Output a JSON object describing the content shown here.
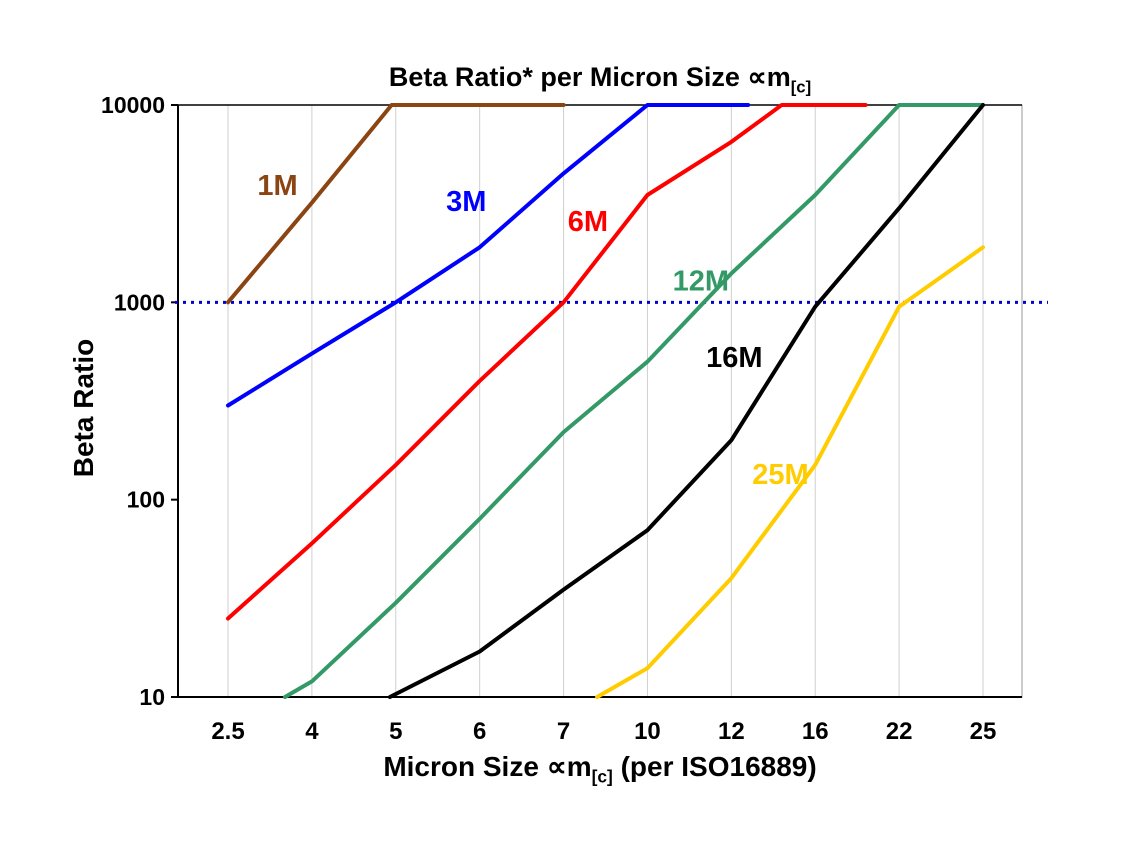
{
  "title": {
    "prefix": "Beta Ratio* per Micron Size ",
    "symbol": "∝m",
    "subscript": "[c]"
  },
  "y_axis": {
    "title": "Beta Ratio",
    "ticks": [
      {
        "label": "10000",
        "value": 10000
      },
      {
        "label": "1000",
        "value": 1000
      },
      {
        "label": "100",
        "value": 100
      },
      {
        "label": "10",
        "value": 10
      }
    ]
  },
  "x_axis": {
    "title_prefix": "Micron Size ",
    "symbol": "∝m",
    "subscript": "[c]",
    "title_suffix": " (per ISO16889)",
    "ticks": [
      "2.5",
      "4",
      "5",
      "6",
      "7",
      "10",
      "12",
      "16",
      "22",
      "25"
    ]
  },
  "chart_data": {
    "type": "line",
    "x_categories": [
      "2.5",
      "4",
      "5",
      "6",
      "7",
      "10",
      "12",
      "16",
      "22",
      "25"
    ],
    "y_scale": "log",
    "ylim": [
      10,
      10000
    ],
    "grid": "vertical-only",
    "legend_position": "inline-labels",
    "reference_line": {
      "value": 1000,
      "color": "#0000CC",
      "style": "dotted"
    },
    "series": [
      {
        "name": "1M",
        "color": "#8B4513",
        "points": [
          [
            0,
            1000
          ],
          [
            1,
            3200
          ],
          [
            1.95,
            10000
          ],
          [
            4.0,
            10000
          ]
        ]
      },
      {
        "name": "3M",
        "color": "#0000FF",
        "points": [
          [
            0,
            300
          ],
          [
            1,
            550
          ],
          [
            2,
            1000
          ],
          [
            3,
            1900
          ],
          [
            4,
            4500
          ],
          [
            5,
            10000
          ],
          [
            6.2,
            10000
          ]
        ]
      },
      {
        "name": "6M",
        "color": "#FF0000",
        "points": [
          [
            0,
            25
          ],
          [
            1,
            60
          ],
          [
            2,
            150
          ],
          [
            3,
            400
          ],
          [
            4,
            1000
          ],
          [
            5,
            3500
          ],
          [
            6,
            6500
          ],
          [
            6.6,
            10000
          ],
          [
            7.6,
            10000
          ]
        ]
      },
      {
        "name": "12M",
        "color": "#339966",
        "points": [
          [
            0.68,
            10
          ],
          [
            1,
            12
          ],
          [
            2,
            30
          ],
          [
            3,
            80
          ],
          [
            4,
            220
          ],
          [
            5,
            500
          ],
          [
            6,
            1400
          ],
          [
            7,
            3500
          ],
          [
            8,
            10000
          ],
          [
            9,
            10000
          ]
        ]
      },
      {
        "name": "16M",
        "color": "#000000",
        "points": [
          [
            1.93,
            10
          ],
          [
            3,
            17
          ],
          [
            4,
            35
          ],
          [
            5,
            70
          ],
          [
            6,
            200
          ],
          [
            7,
            950
          ],
          [
            8,
            3000
          ],
          [
            9,
            10000
          ]
        ]
      },
      {
        "name": "25M",
        "color": "#FFCC00",
        "points": [
          [
            4.4,
            10
          ],
          [
            5,
            14
          ],
          [
            6,
            40
          ],
          [
            7,
            150
          ],
          [
            8,
            950
          ],
          [
            9,
            1900
          ]
        ]
      }
    ],
    "labels": [
      {
        "text": "1M",
        "color": "#8B4513",
        "xi": 0.35,
        "value": 3500
      },
      {
        "text": "3M",
        "color": "#0000FF",
        "xi": 2.6,
        "value": 2900
      },
      {
        "text": "6M",
        "color": "#FF0000",
        "xi": 4.05,
        "value": 2300
      },
      {
        "text": "12M",
        "color": "#339966",
        "xi": 5.3,
        "value": 1150
      },
      {
        "text": "16M",
        "color": "#000000",
        "xi": 5.7,
        "value": 470
      },
      {
        "text": "25M",
        "color": "#FFCC00",
        "xi": 6.25,
        "value": 120
      }
    ]
  }
}
